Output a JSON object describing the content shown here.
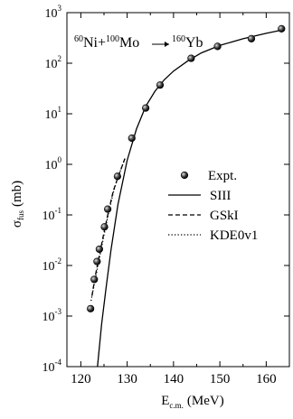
{
  "chart_data": {
    "type": "scatter",
    "title": "",
    "reaction": {
      "a1": "60",
      "e1": "Ni",
      "plus": "+",
      "a2": "100",
      "e2": "Mo",
      "a3": "160",
      "e3": "Yb"
    },
    "xlabel": {
      "main": "E",
      "sub": "c.m.",
      "unit": "(MeV)"
    },
    "ylabel": {
      "main": "σ",
      "sub": "fus",
      "unit": "(mb)"
    },
    "xlim": [
      117,
      165
    ],
    "ylim": [
      0.0001,
      1000
    ],
    "yscale": "log",
    "x_ticks": [
      "120",
      "130",
      "140",
      "150",
      "160"
    ],
    "y_ticks": [
      {
        "base": "10",
        "exp": "-4"
      },
      {
        "base": "10",
        "exp": "-3"
      },
      {
        "base": "10",
        "exp": "-2"
      },
      {
        "base": "10",
        "exp": "-1"
      },
      {
        "base": "10",
        "exp": "0"
      },
      {
        "base": "10",
        "exp": "1"
      },
      {
        "base": "10",
        "exp": "2"
      },
      {
        "base": "10",
        "exp": "3"
      }
    ],
    "legend_position": "center-right",
    "series": [
      {
        "name": "Expt.",
        "kind": "points",
        "x": [
          122.1,
          122.9,
          123.5,
          124.0,
          125.1,
          125.8,
          127.9,
          131.0,
          134.0,
          137.1,
          143.8,
          149.5,
          156.8,
          163.3
        ],
        "y": [
          0.0014,
          0.0053,
          0.012,
          0.021,
          0.058,
          0.13,
          0.58,
          3.3,
          13,
          37,
          125,
          215,
          305,
          480
        ]
      },
      {
        "name": "SIII",
        "kind": "line",
        "dash": "solid",
        "x": [
          123.6,
          124.5,
          125.5,
          126.5,
          128,
          130,
          132,
          134,
          136,
          138,
          140,
          143,
          146,
          150,
          155,
          160,
          163.3
        ],
        "y": [
          0.0001,
          0.0007,
          0.004,
          0.02,
          0.16,
          1.2,
          5,
          14,
          28,
          47,
          70,
          110,
          160,
          225,
          305,
          390,
          450
        ]
      },
      {
        "name": "GSkI",
        "kind": "line",
        "dash": "dashed",
        "x": [
          122.4,
          123.0,
          124.0,
          125.0,
          126.0,
          127.0,
          128.0,
          129.5
        ],
        "y": [
          0.0025,
          0.0055,
          0.016,
          0.045,
          0.12,
          0.3,
          0.55,
          1.3
        ]
      },
      {
        "name": "KDE0v1",
        "kind": "line",
        "dash": "dotted",
        "x": [
          122.2,
          123.0,
          124.0,
          125.0,
          126.0,
          127.0,
          128.0,
          129.5
        ],
        "y": [
          0.002,
          0.0048,
          0.014,
          0.04,
          0.11,
          0.28,
          0.55,
          1.3
        ]
      }
    ]
  }
}
